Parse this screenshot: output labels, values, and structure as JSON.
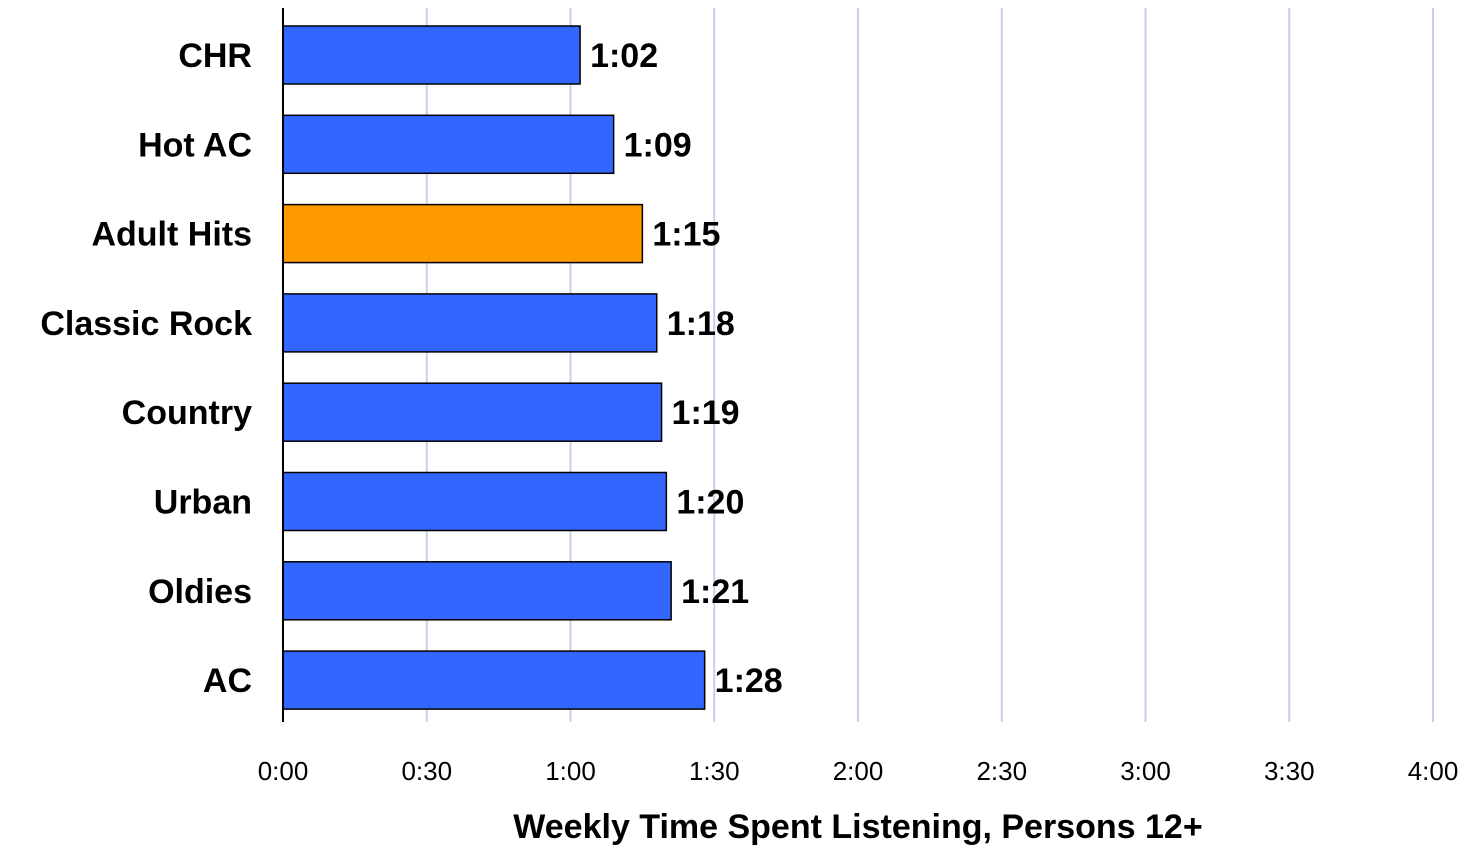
{
  "chart_data": {
    "type": "bar",
    "orientation": "horizontal",
    "categories": [
      "CHR",
      "Hot AC",
      "Adult Hits",
      "Classic Rock",
      "Country",
      "Urban ",
      "Oldies",
      "AC"
    ],
    "values_minutes": [
      62,
      69,
      75,
      78,
      79,
      80,
      81,
      88
    ],
    "value_labels": [
      "1:02",
      "1:09",
      "1:15",
      "1:18",
      "1:19",
      "1:20",
      "1:21",
      "1:28"
    ],
    "highlight_category": "Adult Hits",
    "xlabel": "Weekly Time Spent Listening, Persons 12+",
    "xlim_minutes": [
      0,
      240
    ],
    "x_ticks_minutes": [
      0,
      30,
      60,
      90,
      120,
      150,
      180,
      210,
      240
    ],
    "x_tick_labels": [
      "0:00",
      "0:30",
      "1:00",
      "1:30",
      "2:00",
      "2:30",
      "3:00",
      "3:30",
      "4:00"
    ],
    "grid": "vertical",
    "legend": "none",
    "colors": {
      "bar": "#3366FF",
      "highlight": "#FF9900",
      "bar_outline": "#000000",
      "gridline": "#CCCCEE",
      "axis": "#000000"
    }
  }
}
